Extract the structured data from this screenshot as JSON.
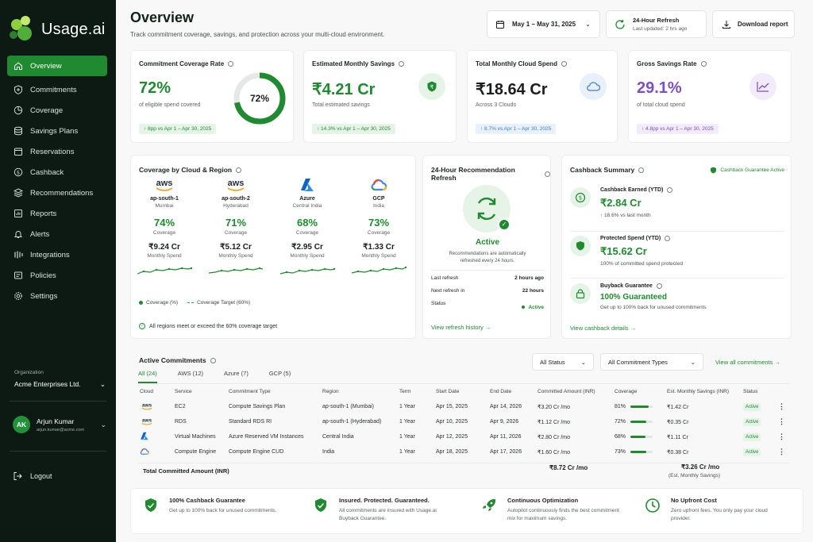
{
  "brand": {
    "name": "Usage.ai"
  },
  "sidebar": {
    "items": [
      {
        "label": "Overview",
        "icon": "home-icon",
        "active": true
      },
      {
        "label": "Commitments",
        "icon": "commitments-icon"
      },
      {
        "label": "Coverage",
        "icon": "coverage-icon"
      },
      {
        "label": "Savings Plans",
        "icon": "savings-plans-icon"
      },
      {
        "label": "Reservations",
        "icon": "reservations-icon"
      },
      {
        "label": "Cashback",
        "icon": "cashback-icon"
      },
      {
        "label": "Recommendations",
        "icon": "recommendations-icon"
      },
      {
        "label": "Reports",
        "icon": "reports-icon"
      },
      {
        "label": "Alerts",
        "icon": "bell-icon"
      },
      {
        "label": "Integrations",
        "icon": "integrations-icon"
      },
      {
        "label": "Policies",
        "icon": "policies-icon"
      },
      {
        "label": "Settings",
        "icon": "gear-icon"
      }
    ],
    "org_label": "Organization",
    "org_name": "Acme Enterprises Ltd.",
    "user_initials": "AK",
    "user_name": "Arjun Kumar",
    "user_email": "arjun.kumar@acme.com",
    "logout_label": "Logout"
  },
  "header": {
    "title": "Overview",
    "subtitle": "Track commitment coverage, savings, and protection across your multi-cloud environment.",
    "date_range": "May 1 – May 31, 2025",
    "refresh_title": "24-Hour Refresh",
    "refresh_sub": "Last updated: 2 hrs ago",
    "download_label": "Download report"
  },
  "kpis": [
    {
      "label": "Commitment Coverage Rate",
      "value": "72%",
      "sub": "of eligible spend covered",
      "chip": "↑ 8pp vs Apr 1 – Apr 30, 2025",
      "ring": "72%",
      "ring_fraction": 0.72
    },
    {
      "label": "Estimated Monthly Savings",
      "value": "₹4.21 Cr",
      "sub": "Total estimated savings",
      "chip": "↑ 14.3% vs Apr 1 – Apr 30, 2025"
    },
    {
      "label": "Total Monthly Cloud Spend",
      "value": "₹18.64 Cr",
      "sub": "Across 3 Clouds",
      "chip": "↑ 8.7% vs Apr 1 – Apr 30, 2025"
    },
    {
      "label": "Gross Savings Rate",
      "value": "29.1%",
      "sub": "of total cloud spend",
      "chip": "↑ 4.8pp vs Apr 1 – Apr 30, 2025"
    }
  ],
  "coverage": {
    "title": "Coverage by Cloud & Region",
    "regions": [
      {
        "logo": "aws",
        "name": "ap-south-1",
        "city": "Mumbai",
        "pct": "74%",
        "pct_label": "Coverage",
        "spend": "₹9.24 Cr",
        "spend_label": "Monthly Spend"
      },
      {
        "logo": "aws",
        "name": "ap-south-2",
        "city": "Hyderabad",
        "pct": "71%",
        "pct_label": "Coverage",
        "spend": "₹5.12 Cr",
        "spend_label": "Monthly Spend"
      },
      {
        "logo": "Azure",
        "name": "Azure",
        "city": "Central India",
        "pct": "68%",
        "pct_label": "Coverage",
        "spend": "₹2.95 Cr",
        "spend_label": "Monthly Spend"
      },
      {
        "logo": "GCP",
        "name": "GCP",
        "city": "India",
        "pct": "73%",
        "pct_label": "Coverage",
        "spend": "₹1.33 Cr",
        "spend_label": "Monthly Spend"
      }
    ],
    "legend_coverage": "Coverage (%)",
    "legend_target": "Coverage Target (60%)",
    "note": "All regions meet or exceed the 60% coverage target"
  },
  "refresh_card": {
    "title": "24-Hour Recommendation Refresh",
    "status_title": "Active",
    "desc": "Recommendations are automatically refreshed every 24 hours.",
    "rows": [
      {
        "label": "Last refresh",
        "value": "2 hours ago"
      },
      {
        "label": "Next refresh in",
        "value": "22 hours"
      },
      {
        "label": "Status",
        "value": "Active"
      }
    ],
    "link": "View refresh history"
  },
  "cashback": {
    "title": "Cashback Summary",
    "guarantee": "Cashback Guarantee Active",
    "items": [
      {
        "label": "Cashback Earned (YTD)",
        "value": "₹2.84 Cr",
        "sub": "↑ 18.6% vs last month"
      },
      {
        "label": "Protected Spend (YTD)",
        "value": "₹15.62 Cr",
        "sub": "100% of committed spend protected"
      },
      {
        "label": "Buyback Guarantee",
        "value": "100% Guaranteed",
        "sub": "Get up to 100% back for unused commitments"
      }
    ],
    "link": "View cashback details"
  },
  "commitments": {
    "title": "Active Commitments",
    "tabs": [
      "All (24)",
      "AWS (12)",
      "Azure (7)",
      "GCP (5)"
    ],
    "filter_status": "All Status",
    "filter_type": "All Commitment Types",
    "view_all": "View all commitments",
    "columns": [
      "Cloud",
      "Service",
      "Commitment Type",
      "Region",
      "Term",
      "Start Date",
      "End Date",
      "Committed Amount (INR)",
      "Coverage",
      "Est. Monthly Savings (INR)",
      "Status"
    ],
    "rows": [
      {
        "cloud": "aws",
        "service": "EC2",
        "type": "Compute Savings Plan",
        "region": "ap-south-1 (Mumbai)",
        "term": "1 Year",
        "start": "Apr 15, 2025",
        "end": "Apr 14, 2026",
        "amount": "₹3.20 Cr /mo",
        "coverage": "81%",
        "coverage_value": 0.81,
        "savings": "₹1.42 Cr",
        "status": "Active"
      },
      {
        "cloud": "aws",
        "service": "RDS",
        "type": "Standard RDS RI",
        "region": "ap-south-1 (Hyderabad)",
        "term": "1 Year",
        "start": "Apr 10, 2025",
        "end": "Apr 9, 2026",
        "amount": "₹1.12 Cr /mo",
        "coverage": "72%",
        "coverage_value": 0.72,
        "savings": "₹0.35 Cr",
        "status": "Active"
      },
      {
        "cloud": "azure",
        "service": "Virtual Machines",
        "type": "Azure Reserved VM Instances",
        "region": "Central India",
        "term": "1 Year",
        "start": "Apr 12, 2025",
        "end": "Apr 11, 2026",
        "amount": "₹2.80 Cr /mo",
        "coverage": "68%",
        "coverage_value": 0.68,
        "savings": "₹1.11 Cr",
        "status": "Active"
      },
      {
        "cloud": "gcp",
        "service": "Compute Engine",
        "type": "Compute Engine CUD",
        "region": "India",
        "term": "1 Year",
        "start": "Apr 18, 2025",
        "end": "Apr 17, 2026",
        "amount": "₹1.60 Cr /mo",
        "coverage": "73%",
        "coverage_value": 0.73,
        "savings": "₹0.38 Cr",
        "status": "Active"
      }
    ],
    "total_label": "Total Committed Amount (INR)",
    "total_amount": "₹8.72 Cr /mo",
    "total_savings": "₹3.26 Cr /mo",
    "total_savings_label": "(Est. Monthly Savings)"
  },
  "features": [
    {
      "title": "100% Cashback Guarantee",
      "desc": "Get up to 100% back for unused commitments."
    },
    {
      "title": "Insured. Protected. Guaranteed.",
      "desc": "All commitments are insured with Usage.ai Buyback Guarantee."
    },
    {
      "title": "Continuous Optimization",
      "desc": "Autopilot continuously finds the best commitment mix for maximum savings."
    },
    {
      "title": "No Upfront Cost",
      "desc": "Zero upfront fees. You only pay your cloud provider."
    }
  ],
  "colors": {
    "accent": "#1f8a2f",
    "sidebar": "#0d1a13",
    "purple": "#7b4fc7",
    "blue": "#3d7fd6"
  }
}
